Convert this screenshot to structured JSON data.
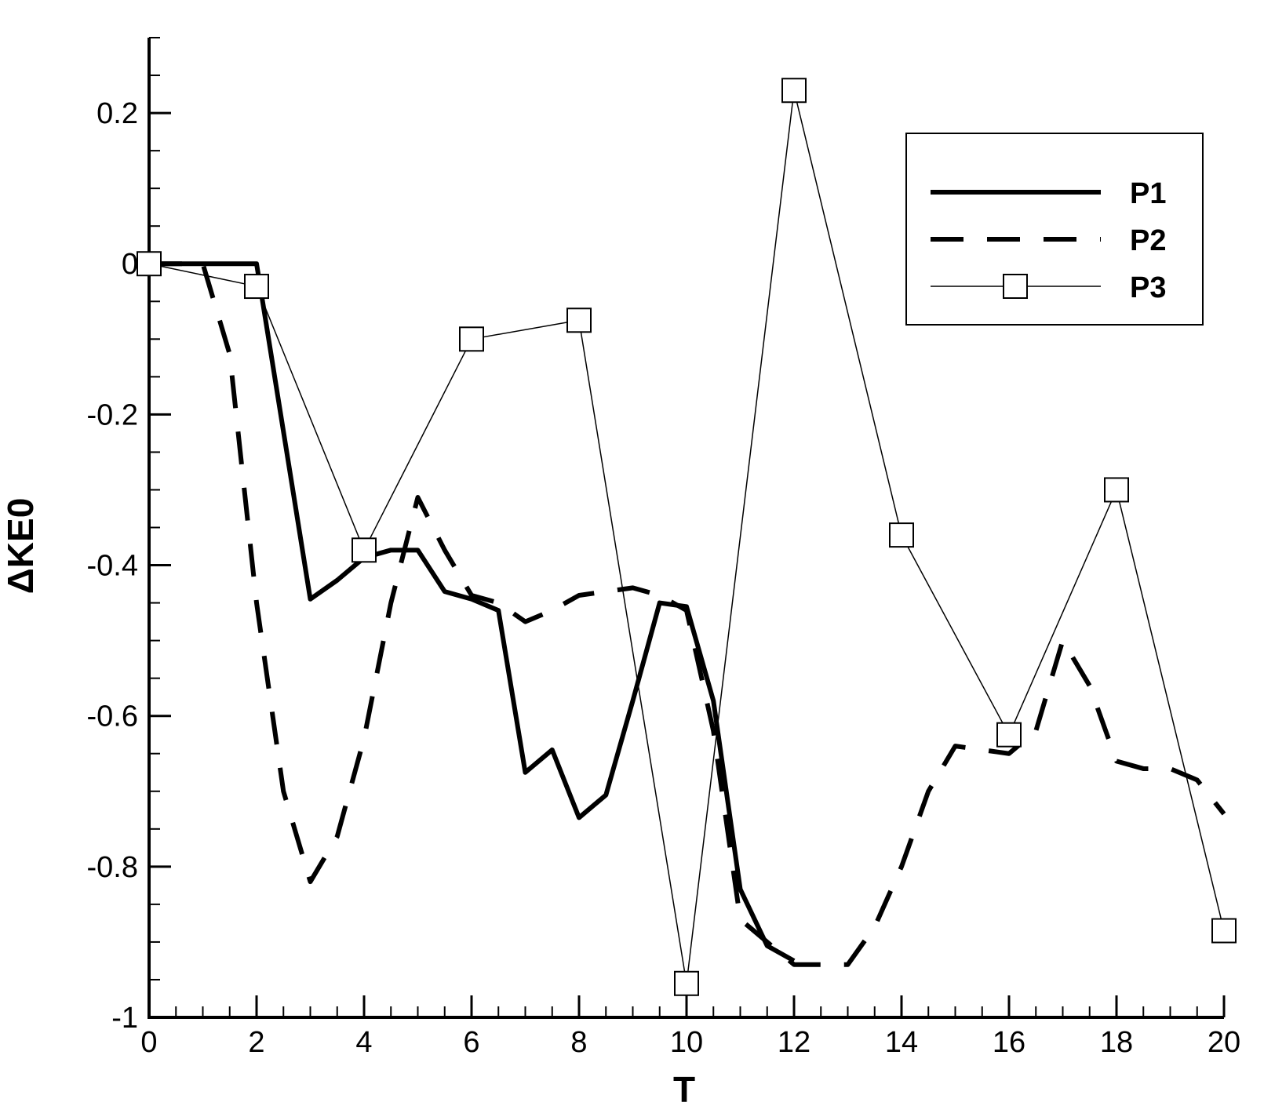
{
  "chart_data": {
    "type": "line",
    "xlabel": "T",
    "ylabel": "ΔKE0",
    "xlim": [
      0,
      20
    ],
    "ylim": [
      -1,
      0.3
    ],
    "x_ticks": [
      0,
      2,
      4,
      6,
      8,
      10,
      12,
      14,
      16,
      18,
      20
    ],
    "x_tick_labels": [
      "0",
      "2",
      "4",
      "6",
      "8",
      "10",
      "12",
      "14",
      "16",
      "18",
      "20"
    ],
    "y_ticks": [
      -1,
      -0.8,
      -0.6,
      -0.4,
      -0.2,
      0,
      0.2
    ],
    "y_tick_labels": [
      "-1",
      "-0.8",
      "-0.6",
      "-0.4",
      "-0.2",
      "0",
      "0.2"
    ],
    "x_minor_step": 0.5,
    "y_minor_step": 0.05,
    "grid": false,
    "legend_position": "top-right",
    "series": [
      {
        "name": "P1",
        "style": "solid-thick",
        "color": "#000000",
        "x": [
          0,
          2,
          3,
          3.5,
          4,
          4.5,
          5,
          5.5,
          6,
          6.5,
          7,
          7.5,
          8,
          8.5,
          9,
          9.5,
          10,
          10.5,
          11,
          11.5,
          12
        ],
        "y": [
          0,
          0,
          -0.445,
          -0.42,
          -0.39,
          -0.38,
          -0.38,
          -0.435,
          -0.445,
          -0.46,
          -0.675,
          -0.645,
          -0.735,
          -0.705,
          -0.58,
          -0.45,
          -0.455,
          -0.58,
          -0.83,
          -0.905,
          -0.925
        ]
      },
      {
        "name": "P2",
        "style": "dashed-thick",
        "color": "#000000",
        "x": [
          0,
          1,
          1.5,
          2,
          2.5,
          3,
          3.5,
          4,
          4.5,
          5,
          5.5,
          6,
          6.5,
          7,
          7.5,
          8,
          8.5,
          9,
          9.5,
          10,
          10.5,
          11,
          11.5,
          12,
          12.5,
          13,
          13.5,
          14,
          14.5,
          15,
          15.5,
          16,
          16.5,
          17,
          17.5,
          18,
          18.5,
          19,
          19.5,
          20
        ],
        "y": [
          0,
          0,
          -0.12,
          -0.45,
          -0.7,
          -0.82,
          -0.76,
          -0.63,
          -0.45,
          -0.31,
          -0.38,
          -0.44,
          -0.45,
          -0.475,
          -0.46,
          -0.44,
          -0.435,
          -0.43,
          -0.44,
          -0.46,
          -0.62,
          -0.87,
          -0.9,
          -0.93,
          -0.93,
          -0.93,
          -0.88,
          -0.8,
          -0.7,
          -0.64,
          -0.645,
          -0.65,
          -0.62,
          -0.5,
          -0.56,
          -0.66,
          -0.67,
          -0.67,
          -0.685,
          -0.73
        ]
      },
      {
        "name": "P3",
        "style": "thin-square-markers",
        "color": "#000000",
        "x": [
          0,
          2,
          4,
          6,
          8,
          10,
          12,
          14,
          16,
          18,
          20
        ],
        "y": [
          0,
          -0.03,
          -0.38,
          -0.1,
          -0.075,
          -0.955,
          0.23,
          -0.36,
          -0.625,
          -0.3,
          -0.885
        ]
      }
    ]
  }
}
